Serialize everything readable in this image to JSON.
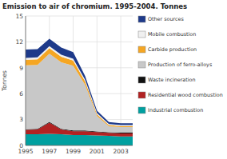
{
  "chart_data": {
    "type": "area",
    "stacked": true,
    "title": "Emission to air of chromium. 1995-2004. Tonnes",
    "ylabel": "Tonnes",
    "x": [
      1995,
      1996,
      1997,
      1998,
      1999,
      2000,
      2001,
      2002,
      2003,
      2004
    ],
    "series": [
      {
        "name": "Industrial combustion",
        "color": "#00a0a0",
        "values": [
          1.3,
          1.3,
          1.35,
          1.3,
          1.2,
          1.2,
          1.15,
          1.1,
          1.05,
          1.05
        ]
      },
      {
        "name": "Residential wood combustion",
        "color": "#b22222",
        "values": [
          0.5,
          0.55,
          1.3,
          0.55,
          0.45,
          0.45,
          0.4,
          0.35,
          0.35,
          0.35
        ]
      },
      {
        "name": "Waste incineration",
        "color": "#111111",
        "values": [
          0.08,
          0.08,
          0.08,
          0.08,
          0.08,
          0.08,
          0.08,
          0.08,
          0.08,
          0.08
        ]
      },
      {
        "name": "Production of ferro-alloys",
        "color": "#c8c8c8",
        "values": [
          7.4,
          7.4,
          7.9,
          7.7,
          7.5,
          5.3,
          1.8,
          0.7,
          0.65,
          0.65
        ]
      },
      {
        "name": "Carbide production",
        "color": "#f5a623",
        "values": [
          0.65,
          0.65,
          0.65,
          0.65,
          0.6,
          0.4,
          0.18,
          0.13,
          0.12,
          0.12
        ]
      },
      {
        "name": "Mobile combustion",
        "color": "#f0f0f0",
        "values": [
          0.22,
          0.22,
          0.22,
          0.22,
          0.22,
          0.18,
          0.13,
          0.11,
          0.1,
          0.1
        ]
      },
      {
        "name": "Other sources",
        "color": "#1e3a8a",
        "values": [
          0.95,
          0.95,
          0.85,
          0.85,
          0.75,
          0.45,
          0.28,
          0.23,
          0.23,
          0.23
        ]
      }
    ],
    "xlim": [
      1995,
      2004
    ],
    "xticks": [
      1995,
      1997,
      1999,
      2001,
      2003
    ],
    "ylim": [
      0,
      15
    ],
    "yticks": [
      0,
      3,
      6,
      9,
      12,
      15
    ],
    "grid": true,
    "legend": "right"
  }
}
